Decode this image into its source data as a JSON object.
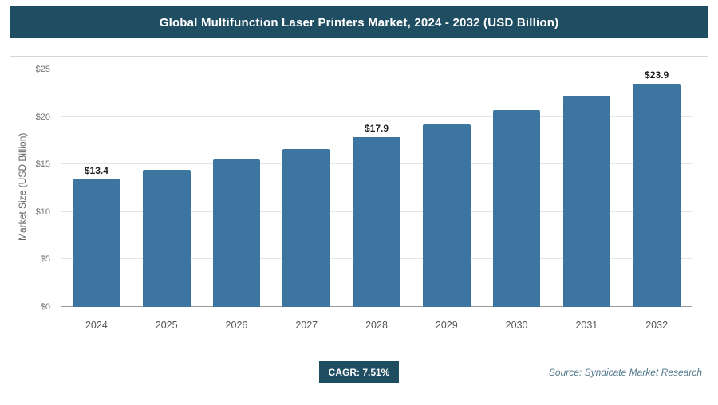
{
  "header": {
    "title": "Global Multifunction Laser Printers Market, 2024 - 2032 (USD Billion)"
  },
  "footer": {
    "cagr_label": "CAGR: 7.51%",
    "source": "Source: Syndicate Market Research"
  },
  "chart_data": {
    "type": "bar",
    "title": "Global Multifunction Laser Printers Market, 2024 - 2032 (USD Billion)",
    "categories": [
      "2024",
      "2025",
      "2026",
      "2027",
      "2028",
      "2029",
      "2030",
      "2031",
      "2032"
    ],
    "values": [
      13.4,
      14.4,
      15.5,
      16.6,
      17.9,
      19.2,
      20.7,
      22.2,
      23.9
    ],
    "data_labels": [
      "$13.4",
      "",
      "",
      "",
      "$17.9",
      "",
      "",
      "",
      "$23.9"
    ],
    "xlabel": "",
    "ylabel": "Market Size (USD Billion)",
    "ylim": [
      0,
      25
    ],
    "yticks": [
      "$0",
      "$5",
      "$10",
      "$15",
      "$20",
      "$25"
    ],
    "grid": true,
    "legend": "none",
    "bar_color": "#3c75a0"
  },
  "colors": {
    "header_bg": "#1f4d61",
    "bar": "#3c75a0",
    "badge_bg": "#1f4d61"
  }
}
